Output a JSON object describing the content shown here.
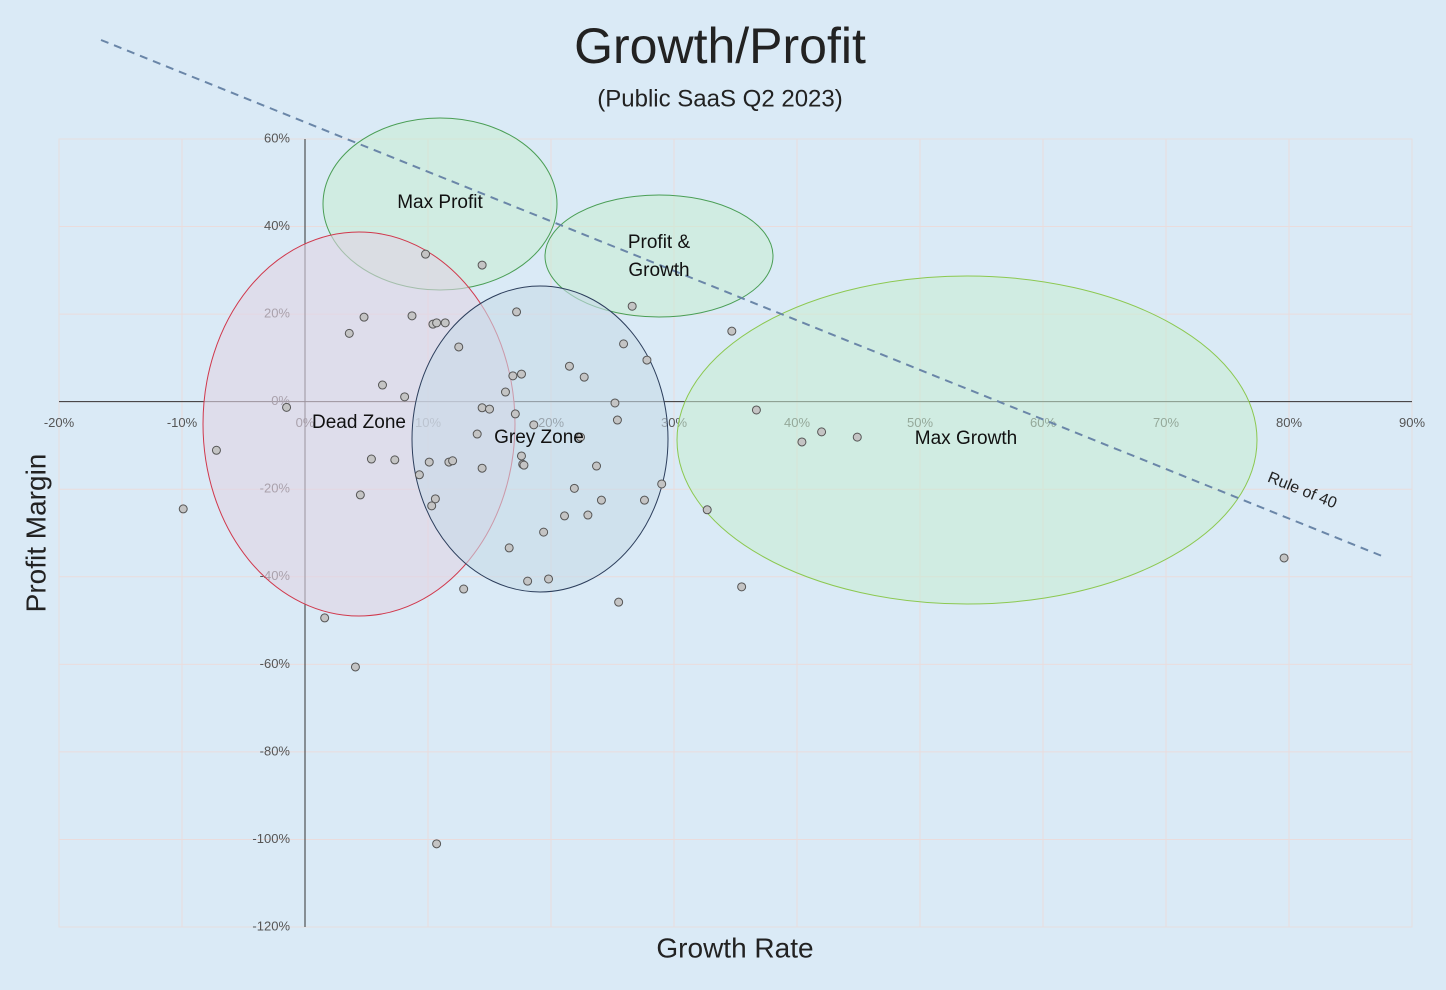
{
  "chart_data": {
    "type": "scatter",
    "title": "Growth/Profit",
    "subtitle": "(Public SaaS Q2 2023)",
    "x_label": "Growth Rate",
    "y_label": "Profit Margin",
    "annotations": [
      "Max Profit",
      [
        "Profit &",
        "Growth"
      ],
      "Dead Zone",
      "Grey Zone",
      "Max Growth",
      "Rule of 40"
    ],
    "xlim": [
      -20,
      90
    ],
    "ylim": [
      -120,
      60
    ],
    "xticks": [
      {
        "value": -20,
        "label": "-20%"
      },
      {
        "value": -10,
        "label": "-10%"
      },
      {
        "value": 0,
        "label": "0%"
      },
      {
        "value": 10,
        "label": "10%"
      },
      {
        "value": 20,
        "label": "20%"
      },
      {
        "value": 30,
        "label": "30%"
      },
      {
        "value": 40,
        "label": "40%"
      },
      {
        "value": 50,
        "label": "50%"
      },
      {
        "value": 60,
        "label": "60%"
      },
      {
        "value": 70,
        "label": "70%"
      },
      {
        "value": 80,
        "label": "80%"
      },
      {
        "value": 90,
        "label": "90%"
      }
    ],
    "yticks": [
      {
        "value": 60,
        "label": "60%"
      },
      {
        "value": 40,
        "label": "40%"
      },
      {
        "value": 20,
        "label": "20%"
      },
      {
        "value": 0,
        "label": "0%"
      },
      {
        "value": -20,
        "label": "-20%"
      },
      {
        "value": -40,
        "label": "-40%"
      },
      {
        "value": -60,
        "label": "-60%"
      },
      {
        "value": -80,
        "label": "-80%"
      },
      {
        "value": -100,
        "label": "-100%"
      },
      {
        "value": -120,
        "label": "-120%"
      }
    ],
    "grid": true,
    "color": "#c4c4c4",
    "x": [
      -1.5,
      -7.2,
      -9.9,
      3.6,
      4.8,
      6.3,
      8.1,
      8.7,
      9.8,
      10.4,
      10.7,
      11.4,
      12.5,
      14.4,
      5.4,
      7.3,
      10.1,
      11.7,
      12.0,
      9.3,
      4.5,
      10.6,
      10.3,
      1.6,
      4.1,
      10.7,
      14.0,
      14.4,
      15.0,
      14.4,
      12.9,
      16.3,
      16.9,
      17.6,
      17.2,
      17.1,
      18.6,
      17.6,
      17.7,
      17.8,
      16.6,
      18.1,
      19.8,
      19.4,
      21.5,
      22.7,
      22.4,
      21.9,
      21.1,
      23.0,
      23.7,
      24.1,
      25.2,
      25.4,
      25.5,
      25.9,
      26.6,
      27.8,
      27.6,
      29.0,
      32.7,
      34.7,
      35.5,
      36.7,
      40.4,
      42.0,
      44.9,
      79.6
    ],
    "values": [
      -1.3,
      -11.1,
      -24.5,
      15.6,
      19.3,
      3.8,
      1.1,
      19.6,
      33.7,
      17.7,
      18,
      18,
      12.5,
      31.2,
      -13.1,
      -13.3,
      -13.8,
      -13.8,
      -13.5,
      -16.7,
      -21.3,
      -22.2,
      -23.8,
      -49.4,
      -60.6,
      -101.0,
      -7.4,
      -1.4,
      -1.7,
      -15.2,
      -42.8,
      2.2,
      5.9,
      6.3,
      20.5,
      -2.8,
      -5.3,
      -12.4,
      -14.3,
      -14.5,
      -33.4,
      -41.0,
      -40.5,
      -29.8,
      8.1,
      5.6,
      -8.1,
      -19.8,
      -26.1,
      -25.9,
      -14.7,
      -22.5,
      -0.3,
      -4.2,
      -45.8,
      13.2,
      21.8,
      9.5,
      -22.5,
      -18.8,
      -24.7,
      16.1,
      -42.3,
      -1.9,
      -9.2,
      -6.9,
      -8.1,
      -35.7
    ]
  }
}
